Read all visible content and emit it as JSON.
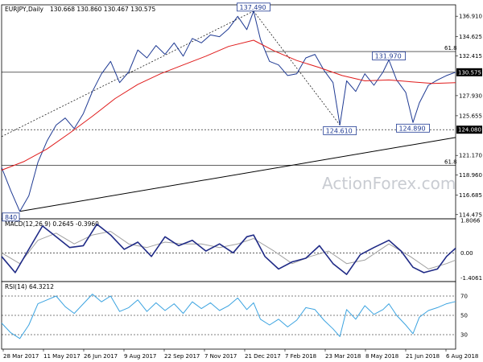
{
  "header": {
    "title": "EURJPY,Daily",
    "ohlc": "130.668 130.860 130.467 130.575"
  },
  "watermark": "ActionForex.com",
  "colors": {
    "price": "#1f3a93",
    "ma": "#e01b1b",
    "macd": "#1f2a86",
    "signal": "#a0a0a0",
    "rsi": "#3ba3e0",
    "trend": "#000000",
    "current_price_box": "#000000",
    "support_box": "#000000"
  },
  "chart_data": [
    {
      "type": "line",
      "name": "price",
      "x_labels": [
        "28 Mar 2017",
        "11 May 2017",
        "26 Jun 2017",
        "9 Aug 2017",
        "22 Sep 2017",
        "7 Nov 2017",
        "21 Dec 2017",
        "7 Feb 2018",
        "23 Mar 2018",
        "8 May 2018",
        "21 Jun 2018",
        "6 Aug 2018"
      ],
      "y_ticks": [
        "136.910",
        "134.625",
        "132.415",
        "130.575",
        "127.930",
        "125.655",
        "124.080",
        "121.170",
        "118.960",
        "116.685",
        "114.475"
      ],
      "ylim": [
        114.0,
        138.2
      ],
      "current_price": "130.575",
      "support_label": "124.080",
      "annotations": [
        {
          "text": "137.490",
          "x": 0.555,
          "y": 137.49
        },
        {
          "text": "131.970",
          "x": 0.853,
          "y": 131.97
        },
        {
          "text": "124.610",
          "x": 0.745,
          "y": 124.61
        },
        {
          "text": "124.890",
          "x": 0.906,
          "y": 124.89
        },
        {
          "text": "840",
          "x": 0.01,
          "y": 114.84
        }
      ],
      "fib_labels": [
        {
          "text": "61.8",
          "y": 132.92
        },
        {
          "text": "61.8",
          "y": 120.07
        }
      ],
      "levels": [
        130.575,
        124.08,
        132.92,
        120.07
      ],
      "series": [
        {
          "x": [
            0.0,
            0.02,
            0.04,
            0.06,
            0.08,
            0.1,
            0.12,
            0.14,
            0.16,
            0.18,
            0.2,
            0.22,
            0.24,
            0.26,
            0.28,
            0.3,
            0.32,
            0.34,
            0.36,
            0.38,
            0.4,
            0.42,
            0.44,
            0.46,
            0.48,
            0.5,
            0.52,
            0.54,
            0.555,
            0.57,
            0.59,
            0.61,
            0.63,
            0.65,
            0.67,
            0.69,
            0.71,
            0.73,
            0.745,
            0.76,
            0.78,
            0.8,
            0.82,
            0.84,
            0.853,
            0.87,
            0.89,
            0.906,
            0.92,
            0.94,
            0.96,
            0.98,
            1.0
          ],
          "values": [
            119.8,
            117.2,
            114.84,
            116.6,
            120.4,
            122.8,
            124.6,
            125.4,
            124.2,
            125.9,
            128.4,
            130.4,
            131.8,
            129.4,
            130.6,
            133.1,
            132.2,
            133.6,
            132.6,
            133.9,
            132.4,
            134.4,
            133.9,
            134.8,
            134.6,
            135.5,
            136.9,
            135.4,
            137.49,
            134.3,
            131.8,
            131.4,
            130.2,
            130.4,
            132.2,
            132.6,
            130.8,
            129.4,
            124.61,
            129.6,
            128.4,
            130.4,
            129.1,
            130.6,
            131.97,
            129.7,
            128.3,
            124.89,
            127.1,
            129.1,
            129.7,
            130.2,
            130.575
          ]
        },
        {
          "x": [
            0.0,
            0.05,
            0.1,
            0.15,
            0.2,
            0.25,
            0.3,
            0.35,
            0.4,
            0.45,
            0.5,
            0.555,
            0.6,
            0.65,
            0.7,
            0.75,
            0.8,
            0.853,
            0.9,
            0.95,
            1.0
          ],
          "values": [
            119.5,
            120.5,
            121.9,
            123.7,
            125.6,
            127.6,
            129.2,
            130.4,
            131.4,
            132.4,
            133.5,
            134.2,
            133.0,
            131.9,
            131.1,
            130.2,
            129.6,
            129.7,
            129.5,
            129.3,
            129.4
          ]
        }
      ]
    },
    {
      "type": "line",
      "name": "MACD",
      "label": "MACD(12,26,9) 0.2645 -0.3960",
      "y_ticks": [
        "1.8066",
        "0.00",
        "-1.4061"
      ],
      "ylim": [
        -1.6,
        1.9
      ],
      "series": [
        {
          "x": [
            0.0,
            0.03,
            0.06,
            0.09,
            0.12,
            0.15,
            0.18,
            0.21,
            0.24,
            0.27,
            0.3,
            0.33,
            0.36,
            0.39,
            0.42,
            0.45,
            0.48,
            0.51,
            0.54,
            0.555,
            0.58,
            0.61,
            0.64,
            0.67,
            0.7,
            0.73,
            0.76,
            0.79,
            0.82,
            0.853,
            0.88,
            0.906,
            0.93,
            0.96,
            0.98,
            1.0
          ],
          "values": [
            -0.2,
            -1.1,
            0.2,
            1.5,
            0.9,
            0.3,
            0.4,
            1.6,
            1.0,
            0.2,
            0.6,
            -0.2,
            0.9,
            0.4,
            0.7,
            0.1,
            0.5,
            0.0,
            0.9,
            1.0,
            -0.2,
            -0.9,
            -0.5,
            -0.3,
            0.4,
            -0.6,
            -1.2,
            -0.1,
            0.3,
            0.7,
            0.1,
            -0.8,
            -1.1,
            -0.9,
            -0.2,
            0.26
          ]
        },
        {
          "x": [
            0.0,
            0.04,
            0.08,
            0.12,
            0.16,
            0.2,
            0.24,
            0.28,
            0.32,
            0.36,
            0.4,
            0.44,
            0.48,
            0.52,
            0.555,
            0.6,
            0.64,
            0.68,
            0.72,
            0.76,
            0.8,
            0.853,
            0.9,
            0.94,
            0.98,
            1.0
          ],
          "values": [
            0.0,
            -0.6,
            0.7,
            1.1,
            0.5,
            1.0,
            1.2,
            0.5,
            0.3,
            0.6,
            0.5,
            0.5,
            0.3,
            0.5,
            0.8,
            0.1,
            -0.6,
            -0.2,
            0.1,
            -0.6,
            -0.4,
            0.5,
            -0.2,
            -0.9,
            -0.6,
            -0.4
          ]
        }
      ]
    },
    {
      "type": "line",
      "name": "RSI",
      "label": "RSI(14) 64.3212",
      "y_ticks": [
        "70",
        "50",
        "30"
      ],
      "ylim": [
        15,
        85
      ],
      "series": [
        {
          "x": [
            0.0,
            0.02,
            0.04,
            0.06,
            0.08,
            0.1,
            0.12,
            0.14,
            0.16,
            0.18,
            0.2,
            0.22,
            0.24,
            0.26,
            0.28,
            0.3,
            0.32,
            0.34,
            0.36,
            0.38,
            0.4,
            0.42,
            0.44,
            0.46,
            0.48,
            0.5,
            0.52,
            0.54,
            0.555,
            0.57,
            0.59,
            0.61,
            0.63,
            0.65,
            0.67,
            0.69,
            0.71,
            0.73,
            0.745,
            0.76,
            0.78,
            0.8,
            0.82,
            0.84,
            0.853,
            0.87,
            0.89,
            0.906,
            0.92,
            0.94,
            0.96,
            0.98,
            1.0
          ],
          "values": [
            42,
            32,
            26,
            40,
            62,
            66,
            70,
            59,
            52,
            62,
            72,
            64,
            70,
            54,
            58,
            66,
            54,
            63,
            55,
            62,
            52,
            64,
            57,
            63,
            55,
            60,
            68,
            56,
            63,
            46,
            40,
            46,
            38,
            45,
            58,
            56,
            45,
            36,
            28,
            56,
            46,
            60,
            51,
            56,
            62,
            50,
            40,
            31,
            48,
            55,
            58,
            62,
            64.3
          ]
        }
      ]
    }
  ]
}
